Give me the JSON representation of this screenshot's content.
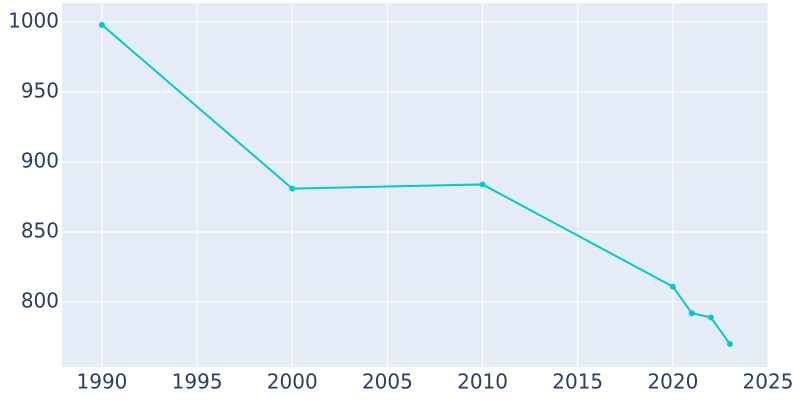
{
  "chart_data": {
    "type": "line",
    "x": [
      1990,
      2000,
      2010,
      2020,
      2021,
      2022,
      2023
    ],
    "series": [
      {
        "color": "#00cccc",
        "values": [
          998,
          881,
          884,
          811,
          792,
          789,
          770
        ]
      }
    ],
    "xlim": [
      1987.9,
      2025
    ],
    "xticks": [
      1990,
      1995,
      2000,
      2005,
      2010,
      2015,
      2020,
      2025
    ],
    "ylim": [
      753.6,
      1013.6
    ],
    "yticks": [
      800,
      850,
      900,
      950,
      1000
    ],
    "grid": true
  }
}
